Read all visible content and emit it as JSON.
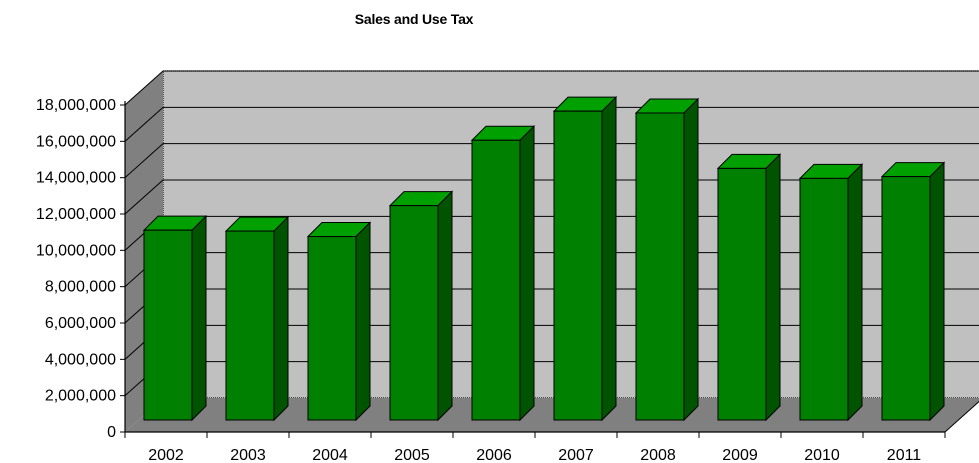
{
  "chart_data": {
    "type": "bar",
    "title": "Sales and Use Tax",
    "xlabel": "",
    "ylabel": "",
    "categories": [
      "2002",
      "2003",
      "2004",
      "2005",
      "2006",
      "2007",
      "2008",
      "2009",
      "2010",
      "2011"
    ],
    "series": [
      {
        "values": [
          11000000,
          10950000,
          10650000,
          12350000,
          15950000,
          17550000,
          17450000,
          14400000,
          13850000,
          13950000
        ]
      }
    ],
    "ylim": [
      0,
      18000000
    ],
    "yticks": [
      0,
      2000000,
      4000000,
      6000000,
      8000000,
      10000000,
      12000000,
      14000000,
      16000000,
      18000000
    ],
    "ytick_labels": [
      "0",
      "2,000,000",
      "4,000,000",
      "6,000,000",
      "8,000,000",
      "10,000,000",
      "12,000,000",
      "14,000,000",
      "16,000,000",
      "18,000,000"
    ],
    "grid": true,
    "legend": "none",
    "style": "3d-column",
    "colors": {
      "bar_front": "#008000",
      "bar_side": "#005400",
      "bar_top": "#00a000",
      "wall": "#c0c0c0",
      "side_wall": "#808080",
      "floor": "#808080"
    }
  }
}
